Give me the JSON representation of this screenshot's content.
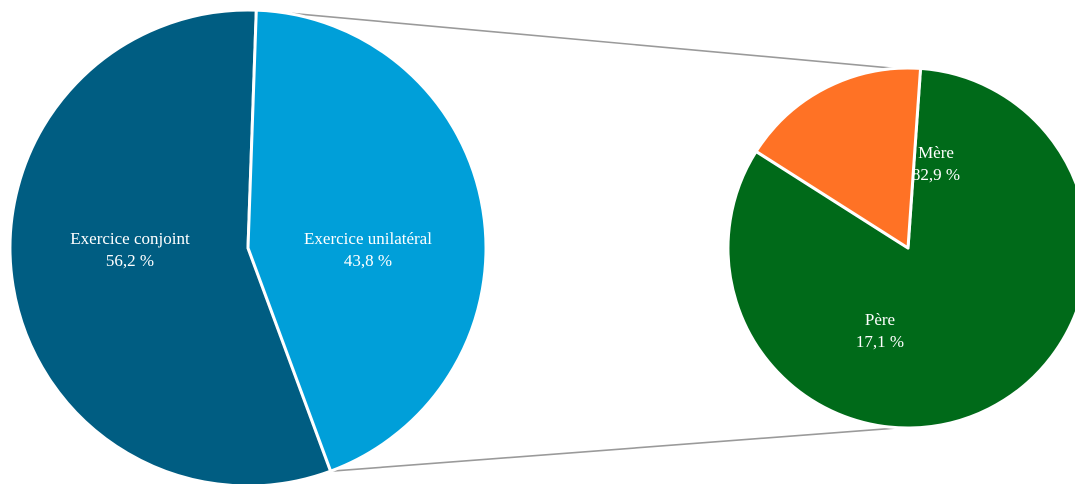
{
  "chart_data": {
    "type": "pie",
    "title": "",
    "main_pie": {
      "slices": [
        {
          "label": "Exercice conjoint",
          "value": 56.2,
          "value_text": "56,2 %",
          "color": "#005d82"
        },
        {
          "label": "Exercice unilatéral",
          "value": 43.8,
          "value_text": "43,8 %",
          "color": "#009fd9"
        }
      ]
    },
    "secondary_pie": {
      "breakdown_of": "Exercice unilatéral",
      "slices": [
        {
          "label": "Mère",
          "value": 82.9,
          "value_text": "82,9 %",
          "color": "#006a19"
        },
        {
          "label": "Père",
          "value": 17.1,
          "value_text": "17,1 %",
          "color": "#ff7225"
        }
      ]
    },
    "connector_color": "#9a9a9a",
    "slice_border_color": "#ffffff"
  }
}
